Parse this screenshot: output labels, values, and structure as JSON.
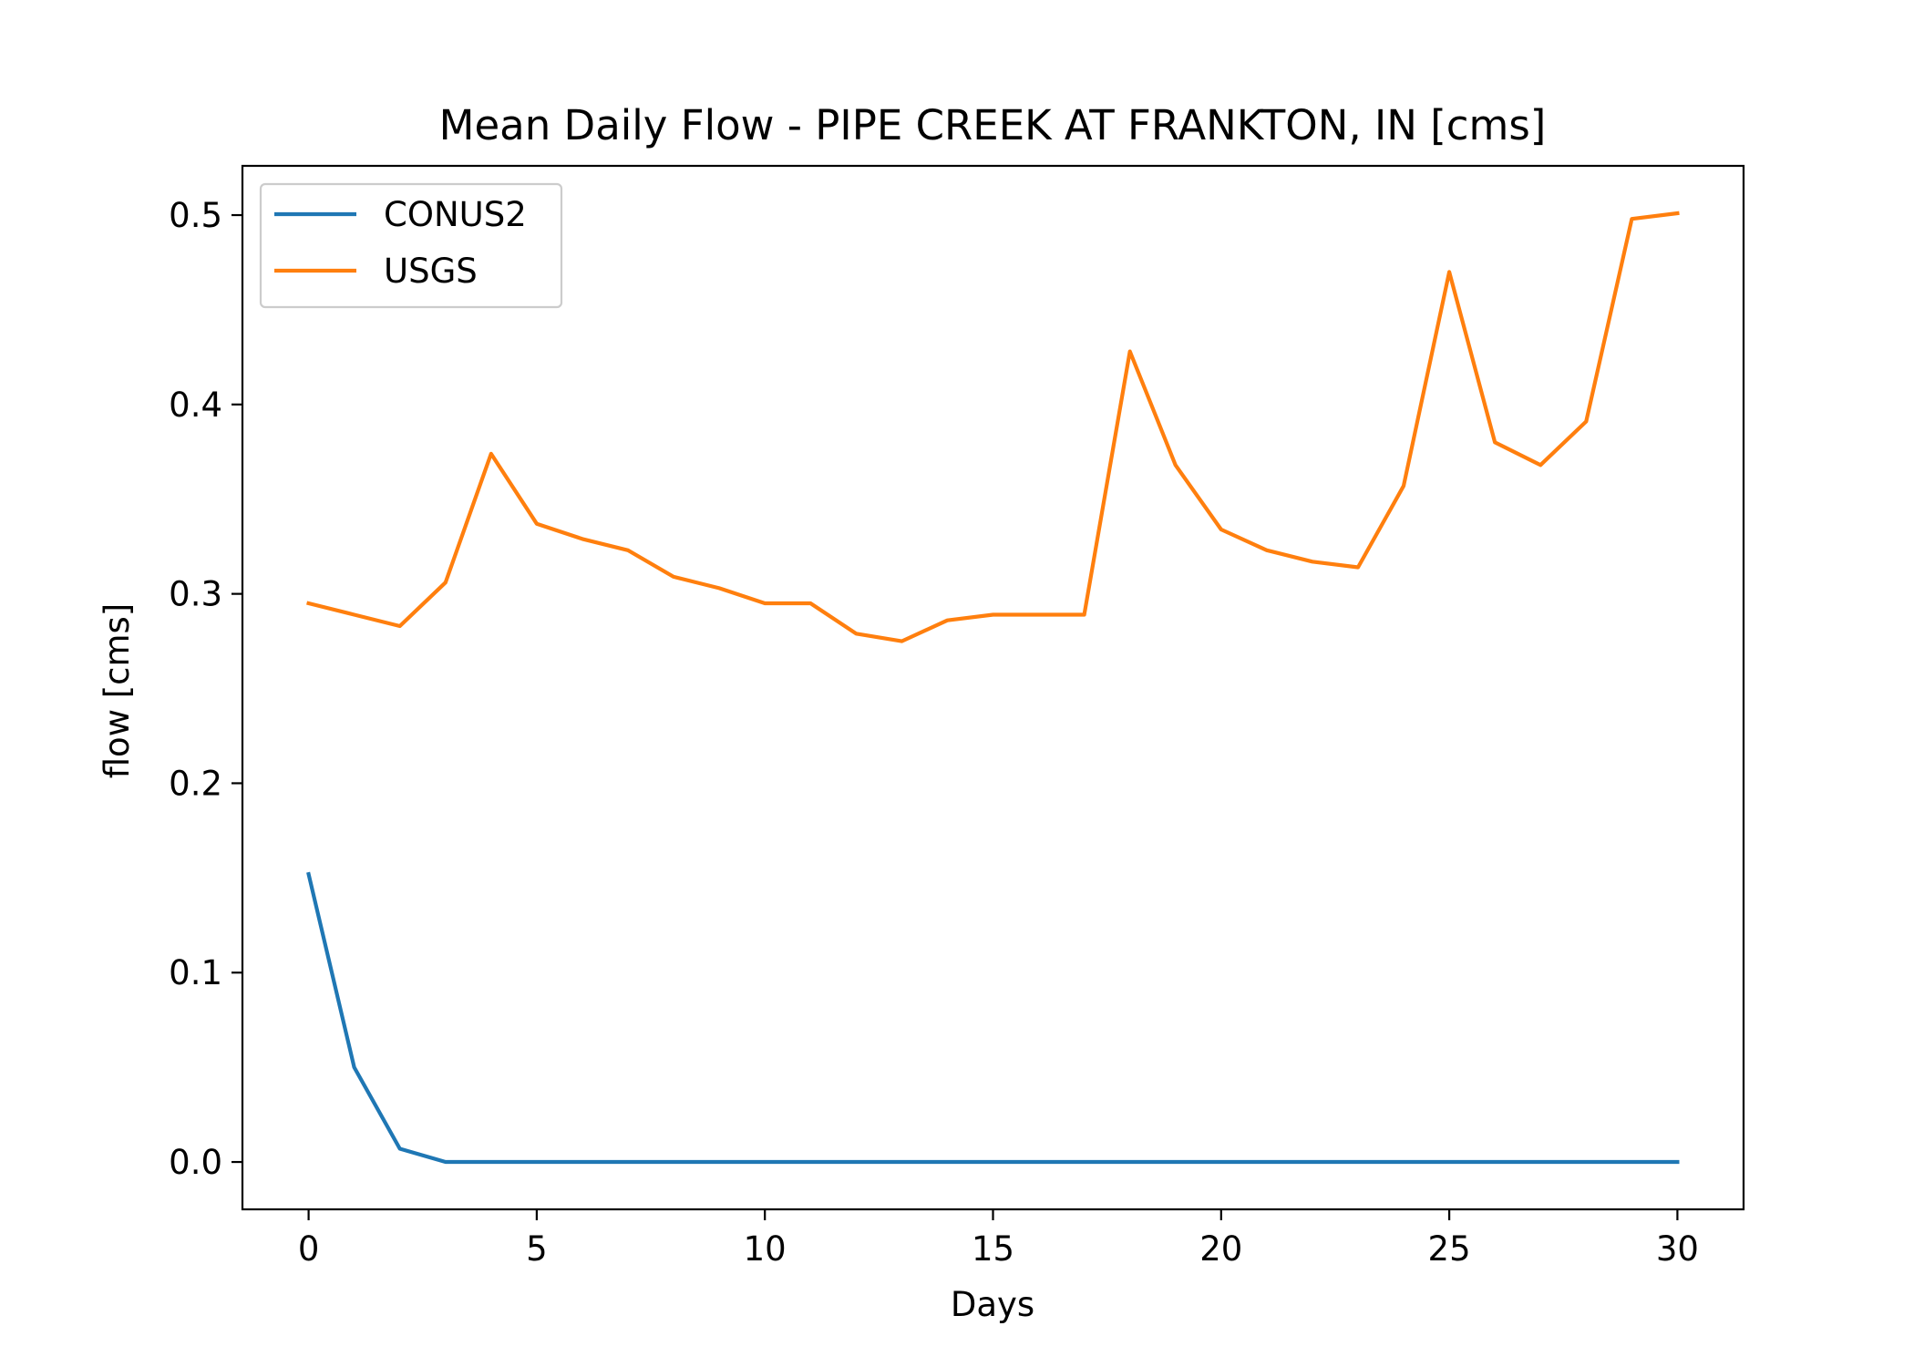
{
  "chart_data": {
    "type": "line",
    "title": "Mean Daily Flow - PIPE CREEK AT FRANKTON, IN [cms]",
    "xlabel": "Days",
    "ylabel": "flow [cms]",
    "xlim": [
      -1.45,
      31.45
    ],
    "ylim": [
      -0.025,
      0.526
    ],
    "xticks": [
      0,
      5,
      10,
      15,
      20,
      25,
      30
    ],
    "xtick_labels": [
      "0",
      "5",
      "10",
      "15",
      "20",
      "25",
      "30"
    ],
    "yticks": [
      0.0,
      0.1,
      0.2,
      0.3,
      0.4,
      0.5
    ],
    "ytick_labels": [
      "0.0",
      "0.1",
      "0.2",
      "0.3",
      "0.4",
      "0.5"
    ],
    "grid": false,
    "legend_position": "top-left",
    "x": [
      0,
      1,
      2,
      3,
      4,
      5,
      6,
      7,
      8,
      9,
      10,
      11,
      12,
      13,
      14,
      15,
      16,
      17,
      18,
      19,
      20,
      21,
      22,
      23,
      24,
      25,
      26,
      27,
      28,
      29,
      30
    ],
    "series": [
      {
        "name": "CONUS2",
        "color": "#1f77b4",
        "values": [
          0.152,
          0.05,
          0.007,
          0.0,
          0.0,
          0.0,
          0.0,
          0.0,
          0.0,
          0.0,
          0.0,
          0.0,
          0.0,
          0.0,
          0.0,
          0.0,
          0.0,
          0.0,
          0.0,
          0.0,
          0.0,
          0.0,
          0.0,
          0.0,
          0.0,
          0.0,
          0.0,
          0.0,
          0.0,
          0.0,
          0.0
        ]
      },
      {
        "name": "USGS",
        "color": "#ff7f0e",
        "values": [
          0.295,
          0.289,
          0.283,
          0.306,
          0.374,
          0.337,
          0.329,
          0.323,
          0.309,
          0.303,
          0.295,
          0.295,
          0.279,
          0.275,
          0.286,
          0.289,
          0.289,
          0.289,
          0.428,
          0.368,
          0.334,
          0.323,
          0.317,
          0.314,
          0.357,
          0.47,
          0.38,
          0.368,
          0.391,
          0.498,
          0.501
        ]
      }
    ]
  }
}
